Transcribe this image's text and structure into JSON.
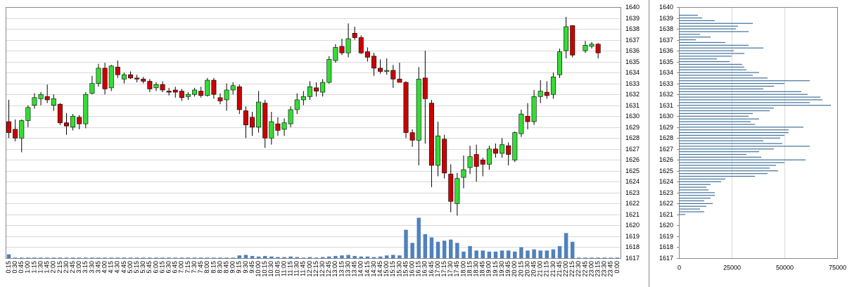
{
  "chart_data": [
    {
      "type": "candlestick",
      "categories": [
        "0:15",
        "0:30",
        "0:45",
        "1:00",
        "1:15",
        "1:30",
        "1:45",
        "2:00",
        "2:15",
        "2:30",
        "2:45",
        "3:00",
        "3:15",
        "3:30",
        "3:45",
        "4:00",
        "4:15",
        "4:30",
        "4:45",
        "5:00",
        "5:15",
        "5:30",
        "5:45",
        "6:00",
        "6:15",
        "6:30",
        "6:45",
        "7:00",
        "7:15",
        "7:30",
        "7:45",
        "8:00",
        "8:15",
        "8:30",
        "8:45",
        "9:00",
        "9:15",
        "9:30",
        "9:45",
        "10:00",
        "10:15",
        "10:30",
        "10:45",
        "11:00",
        "11:15",
        "11:30",
        "11:45",
        "12:00",
        "12:15",
        "12:30",
        "12:45",
        "13:00",
        "13:15",
        "13:30",
        "13:45",
        "14:00",
        "14:15",
        "14:30",
        "14:45",
        "15:00",
        "15:15",
        "15:30",
        "15:45",
        "16:00",
        "16:15",
        "16:30",
        "16:45",
        "17:00",
        "17:15",
        "17:30",
        "17:45",
        "18:00",
        "18:15",
        "18:30",
        "18:45",
        "19:00",
        "19:15",
        "19:30",
        "19:45",
        "20:00",
        "20:15",
        "20:30",
        "20:45",
        "21:00",
        "21:15",
        "21:30",
        "21:45",
        "22:00",
        "22:15",
        "22:30",
        "22:45",
        "23:00",
        "23:15",
        "23:30",
        "23:45",
        "0:00"
      ],
      "open": [
        1629.5,
        1628.8,
        1628,
        1629.6,
        1631,
        1631.6,
        1631.8,
        1631,
        1631.1,
        1629.4,
        1629,
        1629.9,
        1629.3,
        1632.1,
        1633,
        1634.4,
        1632.6,
        1634.5,
        1633.4,
        1633.8,
        1633.5,
        1633.4,
        1633.2,
        1632.6,
        1632.9,
        1632.3,
        1632.4,
        1632.3,
        1631.8,
        1632,
        1632.3,
        1631.9,
        1633.3,
        1631.7,
        1631.5,
        1632.4,
        1632.7,
        1630.5,
        1629.9,
        1629,
        1631.2,
        1628,
        1629.3,
        1628.8,
        1629.3,
        1630.6,
        1631.5,
        1631.8,
        1632.6,
        1632.2,
        1633.1,
        1635.1,
        1636.4,
        1635.8,
        1637.6,
        1637.2,
        1635.9,
        1635.5,
        1634.4,
        1634.1,
        1634.2,
        1633.4,
        1633.1,
        1628.5,
        1627.8,
        1633.5,
        1631.2,
        1625.5,
        1627.9,
        1624.7,
        1622,
        1624.4,
        1625.3,
        1626.5,
        1626,
        1625.6,
        1627,
        1626.6,
        1627.3,
        1626,
        1628.4,
        1630,
        1629.5,
        1631.8,
        1632.2,
        1632,
        1633.8,
        1636,
        1638.3,
        null,
        1636,
        1636.4,
        1636.6,
        null,
        null,
        null
      ],
      "high": [
        1631.5,
        1629.7,
        1629.7,
        1631,
        1632.1,
        1632.2,
        1632.9,
        1632,
        1631.2,
        1630.3,
        1630.2,
        1630.1,
        1632.2,
        1633.7,
        1634.8,
        1634.9,
        1634.7,
        1635.1,
        1634,
        1634.1,
        1633.8,
        1633.6,
        1633.4,
        1633.1,
        1633.2,
        1632.6,
        1632.7,
        1632.5,
        1632.2,
        1632.6,
        1632.7,
        1633.5,
        1633.5,
        1632.1,
        1633,
        1633.1,
        1632.9,
        1630.9,
        1630.4,
        1632.3,
        1631.5,
        1630.4,
        1629.9,
        1629.8,
        1630.9,
        1632.1,
        1632.3,
        1633.2,
        1633.1,
        1633.4,
        1635.5,
        1636.6,
        1637.1,
        1638.5,
        1638.2,
        1637.4,
        1636.3,
        1635.8,
        1635.2,
        1635.3,
        1634.7,
        1634.9,
        1633.2,
        1628.8,
        1634.5,
        1636,
        1631.5,
        1629.5,
        1628.3,
        1625.6,
        1624.8,
        1626.4,
        1627.3,
        1627.4,
        1626.2,
        1627.3,
        1627.5,
        1628,
        1627.6,
        1628.6,
        1630.6,
        1631.2,
        1632.4,
        1633.3,
        1633.2,
        1634,
        1636.2,
        1639.1,
        1638.3,
        null,
        1636.9,
        1636.8,
        1636.7,
        null,
        null,
        null
      ],
      "low": [
        1628,
        1627.7,
        1626.7,
        1629,
        1630.7,
        1631,
        1631.2,
        1630.5,
        1629.2,
        1628.3,
        1628.7,
        1628.8,
        1628.9,
        1632,
        1632.7,
        1632,
        1632.3,
        1633.5,
        1633,
        1633.4,
        1633.1,
        1633,
        1632.2,
        1632.3,
        1632.2,
        1631.9,
        1631.7,
        1631.4,
        1631.5,
        1631.8,
        1631.7,
        1631.8,
        1631.6,
        1631.1,
        1630.5,
        1632,
        1630.2,
        1628,
        1628.2,
        1628.5,
        1627.1,
        1627.4,
        1628.2,
        1628.2,
        1629,
        1630.2,
        1631,
        1631.5,
        1631.8,
        1631.8,
        1633,
        1634.9,
        1635.6,
        1635.4,
        1637,
        1635.7,
        1635,
        1633.7,
        1633.9,
        1633.8,
        1632.6,
        1633.1,
        1628,
        1627.2,
        1625.5,
        1627.5,
        1623.5,
        1624.5,
        1624.3,
        1621.2,
        1620.9,
        1623.4,
        1624.7,
        1624,
        1624.5,
        1625.1,
        1626.2,
        1626.2,
        1625.5,
        1625.8,
        1628.1,
        1628.8,
        1629.2,
        1631.2,
        1631.6,
        1631.6,
        1633.5,
        1635.3,
        1635.4,
        null,
        1635.8,
        1636.2,
        1635.3,
        null,
        null,
        null
      ],
      "close": [
        1628.5,
        1628,
        1629.6,
        1630.8,
        1631.7,
        1632,
        1631.5,
        1631.6,
        1629.4,
        1629.1,
        1630,
        1629.3,
        1632,
        1633,
        1634.4,
        1632.5,
        1634.6,
        1633.8,
        1633.8,
        1633.5,
        1633.4,
        1633.2,
        1632.5,
        1632.9,
        1632.4,
        1632.2,
        1632.2,
        1631.7,
        1632,
        1632.4,
        1631.9,
        1633.3,
        1632,
        1631.4,
        1632.4,
        1632.8,
        1630.6,
        1629.2,
        1629,
        1631.3,
        1628,
        1629.5,
        1628.7,
        1629.4,
        1630.6,
        1631.5,
        1631.8,
        1632.7,
        1632.3,
        1633.1,
        1635.2,
        1636.3,
        1635.8,
        1637.1,
        1637.2,
        1635.8,
        1635.4,
        1634.4,
        1634.1,
        1634.2,
        1633.4,
        1633.1,
        1628.5,
        1627.8,
        1633.4,
        1631.6,
        1625.5,
        1628.2,
        1624.8,
        1622.2,
        1624.3,
        1625.1,
        1626.3,
        1625.4,
        1625.6,
        1627,
        1626.6,
        1627.4,
        1626.5,
        1628.5,
        1630.2,
        1629.5,
        1631.8,
        1632.3,
        1631.9,
        1633.6,
        1635.9,
        1638.2,
        1635.6,
        null,
        1636.5,
        1636.6,
        1635.8,
        null,
        null,
        null
      ],
      "volume": [
        1617.35,
        1617.05,
        1617.05,
        1617.05,
        1617.05,
        1617.05,
        1617.05,
        1617.05,
        1617.05,
        1617.05,
        1617.05,
        1617.05,
        1617.05,
        1617.05,
        1617.05,
        1617.05,
        1617.05,
        1617.05,
        1617.05,
        1617.05,
        1617.05,
        1617.05,
        1617.05,
        1617.05,
        1617.05,
        1617.05,
        1617.05,
        1617.05,
        1617.05,
        1617.05,
        1617.05,
        1617.05,
        1617.05,
        1617.05,
        1617.05,
        1617.05,
        1617.25,
        1617.3,
        1617.2,
        1617.15,
        1617.2,
        1617.15,
        1617.1,
        1617.1,
        1617.15,
        1617.1,
        1617.05,
        1617.1,
        1617.05,
        1617.1,
        1617.15,
        1617.2,
        1617.25,
        1617.3,
        1617.2,
        1617.15,
        1617.15,
        1617.1,
        1617.15,
        1617.25,
        1617.3,
        1617.25,
        1619.6,
        1618.4,
        1620.7,
        1619.2,
        1618.9,
        1618.5,
        1618.6,
        1618.7,
        1618.4,
        1617.6,
        1618.1,
        1617.7,
        1617.7,
        1617.6,
        1617.6,
        1617.7,
        1617.7,
        1617.6,
        1618,
        1617.7,
        1617.8,
        1617.7,
        1617.7,
        1617.8,
        1618.1,
        1619.3,
        1618.5,
        1617.05,
        1617.05,
        1617.05,
        1617.05,
        1617.05,
        1617.05,
        1617.05
      ],
      "up_color": "#33dd33",
      "down_color": "#cc0000",
      "volume_color": "#4f81bd",
      "ylim": [
        1617,
        1640
      ],
      "yticks": [
        1617,
        1618,
        1619,
        1620,
        1621,
        1622,
        1623,
        1624,
        1625,
        1626,
        1627,
        1628,
        1629,
        1630,
        1631,
        1632,
        1633,
        1634,
        1635,
        1636,
        1637,
        1638,
        1639,
        1640
      ],
      "grid": true
    },
    {
      "type": "barh",
      "y": [
        1639.25,
        1639,
        1638.75,
        1638.5,
        1638.25,
        1638,
        1637.75,
        1637.5,
        1637.25,
        1637,
        1636.75,
        1636.5,
        1636.25,
        1636,
        1635.75,
        1635.5,
        1635.25,
        1635,
        1634.75,
        1634.5,
        1634.25,
        1634,
        1633.75,
        1633.5,
        1633.25,
        1633,
        1632.75,
        1632.5,
        1632.25,
        1632,
        1631.75,
        1631.5,
        1631.25,
        1631,
        1630.75,
        1630.5,
        1630.25,
        1630,
        1629.75,
        1629.5,
        1629.25,
        1629,
        1628.75,
        1628.5,
        1628.25,
        1628,
        1627.75,
        1627.5,
        1627.25,
        1627,
        1626.75,
        1626.5,
        1626.25,
        1626,
        1625.75,
        1625.5,
        1625.25,
        1625,
        1624.75,
        1624.5,
        1624.25,
        1624,
        1623.75,
        1623.5,
        1623.25,
        1623,
        1622.75,
        1622.5,
        1622.25,
        1622,
        1621.75,
        1621.5,
        1621.25,
        1621
      ],
      "values": [
        9000,
        11000,
        17000,
        35000,
        28000,
        27000,
        33000,
        10000,
        15000,
        8000,
        22000,
        33000,
        40000,
        26000,
        31000,
        25000,
        18000,
        24000,
        30000,
        31000,
        32000,
        38000,
        35000,
        42000,
        62000,
        50000,
        45000,
        40000,
        58000,
        61000,
        67000,
        68000,
        62000,
        72000,
        45000,
        43000,
        35000,
        33000,
        38000,
        34000,
        36000,
        59000,
        52000,
        52000,
        50000,
        48000,
        40000,
        49000,
        62000,
        45000,
        38000,
        32000,
        39000,
        60000,
        50000,
        46000,
        43000,
        47000,
        42000,
        36000,
        22000,
        20000,
        15000,
        13000,
        14000,
        17000,
        17000,
        15000,
        12000,
        16000,
        13000,
        10000,
        12000,
        3000
      ],
      "color": "#41719c",
      "xlim": [
        0,
        75000
      ],
      "xticks": [
        0,
        25000,
        50000,
        75000
      ],
      "ylim": [
        1617,
        1640
      ],
      "yticks": [
        1617,
        1618,
        1619,
        1620,
        1621,
        1622,
        1623,
        1624,
        1625,
        1626,
        1627,
        1628,
        1629,
        1630,
        1631,
        1632,
        1633,
        1634,
        1635,
        1636,
        1637,
        1638,
        1639,
        1640
      ],
      "grid": true
    }
  ]
}
